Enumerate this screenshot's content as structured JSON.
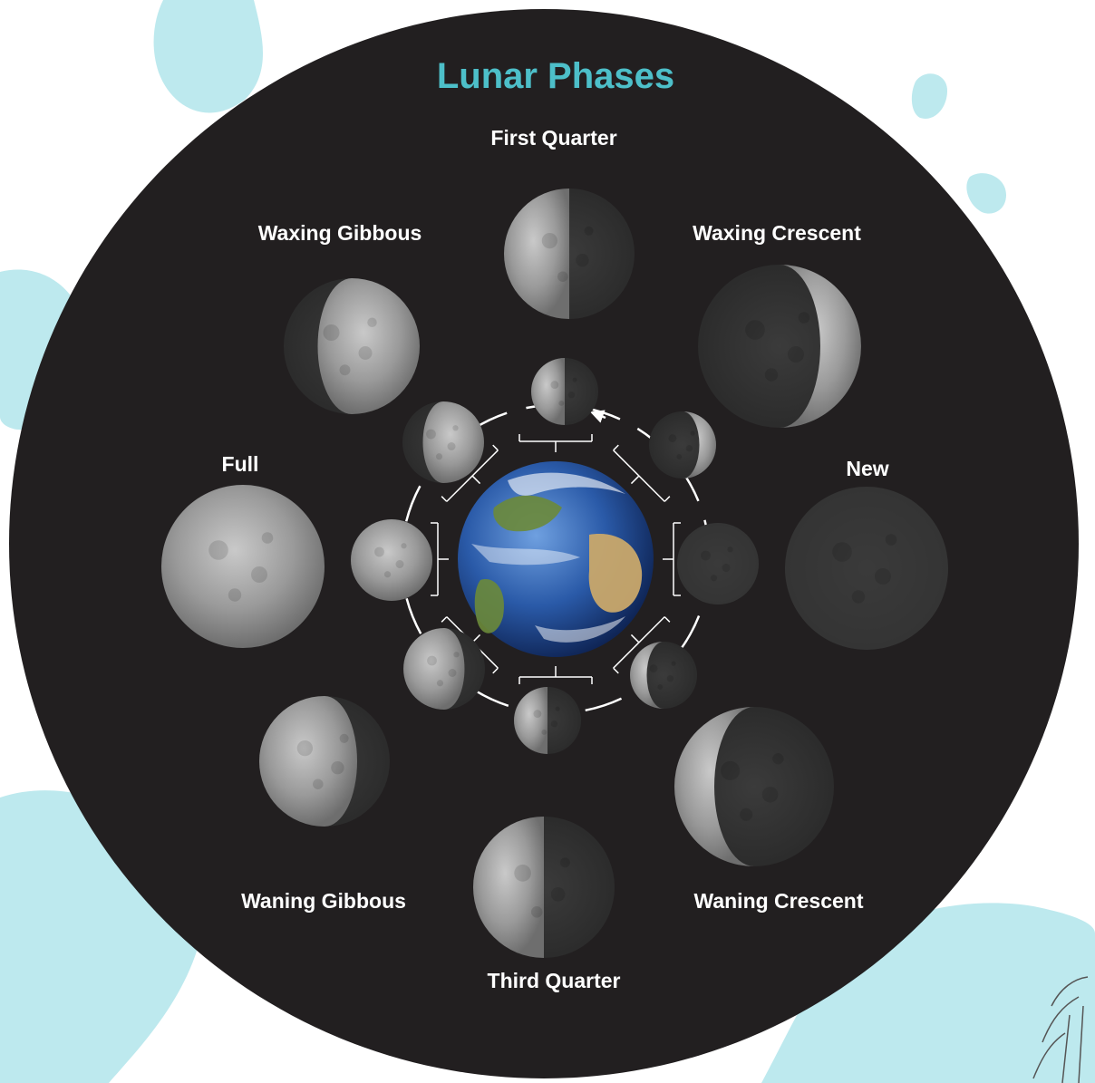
{
  "title": "Lunar Phases",
  "colors": {
    "background_disc": "#221f20",
    "accent": "#4dbfc9",
    "splash": "#bde9ee",
    "label": "#ffffff",
    "orbit": "#ffffff"
  },
  "center": "earth",
  "phases": [
    {
      "id": "first-quarter",
      "label": "First Quarter",
      "lit": "left",
      "fraction": 0.5
    },
    {
      "id": "waxing-crescent",
      "label": "Waxing Crescent",
      "lit": "right",
      "fraction": 0.25
    },
    {
      "id": "new",
      "label": "New",
      "lit": "none",
      "fraction": 0.0
    },
    {
      "id": "waning-crescent",
      "label": "Waning Crescent",
      "lit": "left",
      "fraction": 0.25
    },
    {
      "id": "third-quarter",
      "label": "Third Quarter",
      "lit": "left",
      "fraction": 0.5
    },
    {
      "id": "waning-gibbous",
      "label": "Waning Gibbous",
      "lit": "left",
      "fraction": 0.75
    },
    {
      "id": "full",
      "label": "Full",
      "lit": "full",
      "fraction": 1.0
    },
    {
      "id": "waxing-gibbous",
      "label": "Waxing Gibbous",
      "lit": "right",
      "fraction": 0.75
    }
  ],
  "orbit_direction": "counter-clockwise"
}
